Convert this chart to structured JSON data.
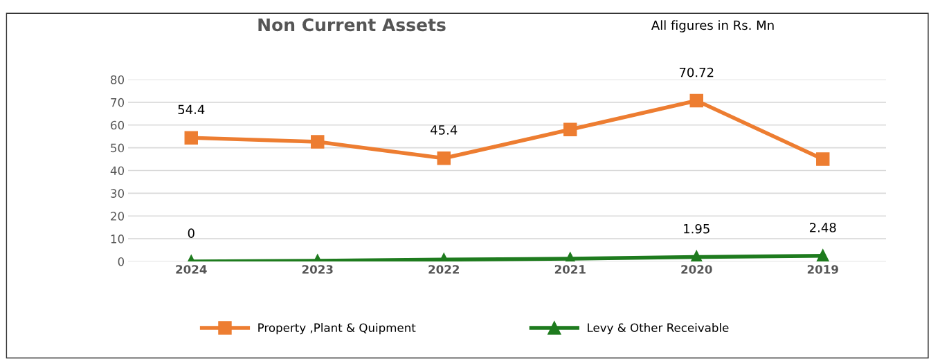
{
  "chart_data": {
    "type": "line",
    "title": "Non Current Assets",
    "subtitle": "All figures in Rs. Mn",
    "categories": [
      "2024",
      "2023",
      "2022",
      "2021",
      "2020",
      "2019"
    ],
    "series": [
      {
        "name": "Property ,Plant & Quipment",
        "color": "#ed7d31",
        "marker": "square",
        "values": [
          54.4,
          52.6,
          45.4,
          58,
          70.72,
          45
        ],
        "value_labels": [
          "54.4",
          null,
          "45.4",
          null,
          "70.72",
          null
        ]
      },
      {
        "name": "Levy & Other Receivable",
        "color": "#1e7b1e",
        "marker": "triangle",
        "values": [
          0,
          0.3,
          0.8,
          1.2,
          1.95,
          2.48
        ],
        "value_labels": [
          "0",
          null,
          null,
          null,
          "1.95",
          "2.48"
        ]
      }
    ],
    "ylim": [
      0,
      80
    ],
    "yticks": [
      0,
      10,
      20,
      30,
      40,
      50,
      60,
      70,
      80
    ],
    "grid": "y",
    "legend": "bottom",
    "line_style": "solid"
  }
}
